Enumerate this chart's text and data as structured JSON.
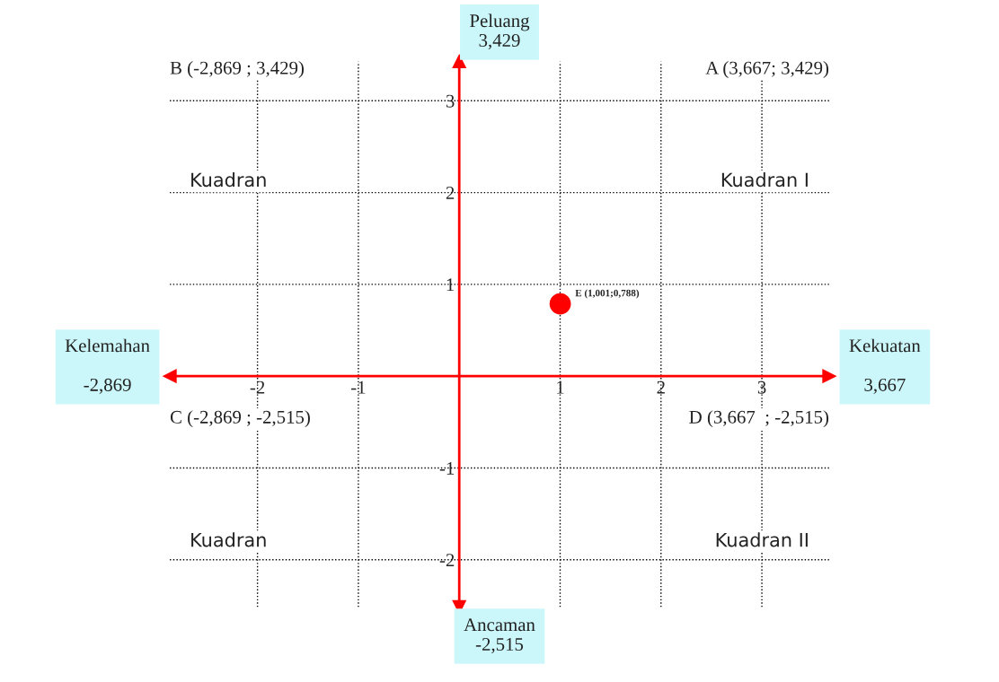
{
  "chart_data": {
    "type": "scatter",
    "series": [
      {
        "name": "E (1,001;0,788)",
        "color": "#ff0000",
        "x": [
          1.001
        ],
        "values": [
          0.788
        ]
      }
    ],
    "xlim": [
      -2.869,
      3.667
    ],
    "ylim": [
      -2.515,
      3.429
    ],
    "xticks": [
      -2,
      -1,
      1,
      2,
      3
    ],
    "yticks": [
      -2,
      -1,
      1,
      2,
      3
    ],
    "grid": true,
    "marker": "circle",
    "annotations": [
      "Peluang\n3,429",
      "Kelemahan\n\n-2,869",
      "Kekuatan\n\n3,667",
      "Ancaman\n-2,515",
      "A (3,667; 3,429)",
      "B (-2,869 ; 3,429)",
      "C (-2,869 ; -2,515)",
      "D (3,667  ; -2,515)",
      "Kuadran I",
      "Kuadran",
      "Kuadran",
      "Kuadran II"
    ]
  }
}
